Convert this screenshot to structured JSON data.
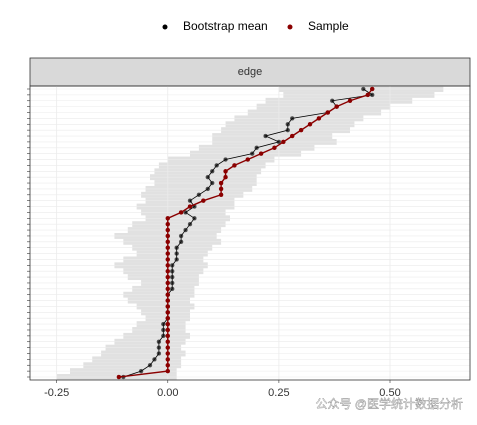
{
  "chart_data": {
    "type": "line",
    "strip_label": "edge",
    "categories": [
      null,
      null,
      null,
      null,
      null,
      null,
      null,
      null,
      null,
      null,
      null,
      null,
      null,
      null,
      null,
      null,
      null,
      null,
      null,
      null,
      null,
      null,
      null,
      null,
      null,
      null,
      null,
      null,
      null,
      null,
      null,
      null,
      null,
      null,
      null,
      null,
      null,
      null,
      null,
      null,
      null,
      null,
      null,
      null,
      null,
      null,
      null,
      null,
      null,
      null
    ],
    "series": [
      {
        "name": "Bootstrap mean",
        "color": "#000000",
        "values": [
          0.44,
          0.46,
          0.37,
          0.38,
          0.36,
          0.28,
          0.27,
          0.27,
          0.22,
          0.25,
          0.2,
          0.19,
          0.13,
          0.11,
          0.1,
          0.09,
          0.1,
          0.09,
          0.07,
          0.05,
          0.06,
          0.04,
          0.06,
          0.05,
          0.04,
          0.03,
          0.03,
          0.02,
          0.02,
          0.02,
          0.01,
          0.01,
          0.01,
          0.01,
          0.01,
          0.0,
          0.0,
          0.0,
          0.0,
          0.0,
          -0.01,
          -0.01,
          -0.01,
          -0.02,
          -0.02,
          -0.02,
          -0.03,
          -0.04,
          -0.06,
          -0.1
        ]
      },
      {
        "name": "Sample",
        "color": "#8b0000",
        "values": [
          0.46,
          0.45,
          0.41,
          0.38,
          0.36,
          0.34,
          0.32,
          0.3,
          0.28,
          0.26,
          0.24,
          0.21,
          0.18,
          0.15,
          0.13,
          0.13,
          0.12,
          0.12,
          0.12,
          0.08,
          0.05,
          0.03,
          0.0,
          0,
          0,
          0,
          0,
          0,
          0,
          0,
          0,
          0,
          0,
          0,
          0,
          0,
          0,
          0,
          0,
          0,
          0,
          0,
          0,
          0,
          0,
          0,
          0,
          0,
          0,
          -0.11
        ]
      }
    ],
    "ci_lower": [
      0.25,
      0.26,
      0.22,
      0.2,
      0.18,
      0.15,
      0.13,
      0.12,
      0.1,
      0.1,
      0.07,
      0.05,
      0.0,
      -0.02,
      -0.03,
      -0.04,
      -0.03,
      -0.05,
      -0.06,
      -0.05,
      -0.07,
      -0.06,
      -0.05,
      -0.08,
      -0.09,
      -0.12,
      -0.1,
      -0.08,
      -0.07,
      -0.1,
      -0.12,
      -0.1,
      -0.09,
      -0.06,
      -0.08,
      -0.1,
      -0.09,
      -0.07,
      -0.06,
      -0.05,
      -0.07,
      -0.08,
      -0.1,
      -0.12,
      -0.14,
      -0.15,
      -0.17,
      -0.19,
      -0.22,
      -0.25
    ],
    "ci_upper": [
      0.62,
      0.6,
      0.55,
      0.5,
      0.48,
      0.44,
      0.42,
      0.41,
      0.37,
      0.38,
      0.33,
      0.3,
      0.24,
      0.22,
      0.21,
      0.2,
      0.2,
      0.19,
      0.17,
      0.15,
      0.15,
      0.13,
      0.14,
      0.13,
      0.12,
      0.11,
      0.12,
      0.1,
      0.09,
      0.08,
      0.09,
      0.08,
      0.07,
      0.07,
      0.06,
      0.06,
      0.05,
      0.06,
      0.05,
      0.05,
      0.04,
      0.04,
      0.05,
      0.04,
      0.03,
      0.04,
      0.03,
      0.03,
      0.02,
      0.02
    ],
    "band_color": "#d9d9d9",
    "xlim": [
      -0.31,
      0.68
    ],
    "xticks": [
      {
        "value": -0.25,
        "label": "-0.25"
      },
      {
        "value": 0,
        "label": "0.00"
      },
      {
        "value": 0.25,
        "label": "0.25"
      },
      {
        "value": 0.5,
        "label": "0.50"
      }
    ],
    "grid": true,
    "legend": "top",
    "watermark": "公众号 @医学统计数据分析"
  }
}
